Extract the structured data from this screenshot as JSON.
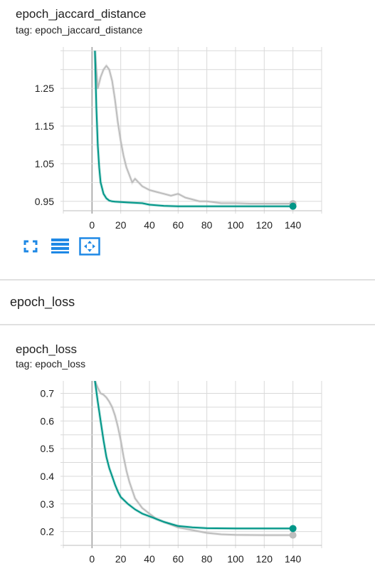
{
  "colors": {
    "accent": "#009688",
    "gray_run": "#bdbdbd",
    "icon_blue": "#1e88e5",
    "grid": "#d9d9d9"
  },
  "card1": {
    "title": "epoch_jaccard_distance",
    "tag": "tag: epoch_jaccard_distance",
    "toolbar": [
      {
        "name": "fullscreen-icon"
      },
      {
        "name": "toggle-log-scale-icon"
      },
      {
        "name": "fit-domain-icon"
      }
    ]
  },
  "section": {
    "title": "epoch_loss"
  },
  "card2": {
    "title": "epoch_loss",
    "tag": "tag: epoch_loss"
  },
  "chart_data": [
    {
      "type": "line",
      "title": "epoch_jaccard_distance",
      "xlabel": "",
      "ylabel": "",
      "xlim": [
        -20,
        160
      ],
      "ylim": [
        0.925,
        1.36
      ],
      "x_ticks": [
        0,
        20,
        40,
        60,
        80,
        100,
        120,
        140
      ],
      "y_ticks": [
        0.95,
        1.05,
        1.15,
        1.25
      ],
      "y_tick_labels": [
        "0.95",
        "1.05",
        "1.15",
        "1.25"
      ],
      "series": [
        {
          "name": "run_gray",
          "color": "#bdbdbd",
          "x": [
            2,
            4,
            6,
            8,
            10,
            12,
            14,
            16,
            18,
            20,
            22,
            24,
            26,
            28,
            30,
            35,
            40,
            45,
            50,
            55,
            60,
            65,
            70,
            75,
            80,
            90,
            100,
            110,
            120,
            130,
            140
          ],
          "y": [
            1.35,
            1.25,
            1.28,
            1.3,
            1.31,
            1.3,
            1.27,
            1.22,
            1.16,
            1.11,
            1.07,
            1.04,
            1.02,
            1.0,
            1.01,
            0.99,
            0.98,
            0.975,
            0.97,
            0.965,
            0.97,
            0.96,
            0.955,
            0.95,
            0.95,
            0.945,
            0.945,
            0.944,
            0.944,
            0.944,
            0.944
          ]
        },
        {
          "name": "run_teal",
          "color": "#009688",
          "x": [
            2,
            3,
            4,
            5,
            6,
            8,
            10,
            12,
            14,
            16,
            20,
            25,
            30,
            35,
            40,
            50,
            60,
            80,
            100,
            120,
            140
          ],
          "y": [
            1.35,
            1.2,
            1.1,
            1.04,
            1.0,
            0.97,
            0.958,
            0.952,
            0.95,
            0.949,
            0.948,
            0.947,
            0.946,
            0.945,
            0.941,
            0.938,
            0.937,
            0.937,
            0.937,
            0.937,
            0.937
          ]
        }
      ]
    },
    {
      "type": "line",
      "title": "epoch_loss",
      "xlabel": "",
      "ylabel": "",
      "xlim": [
        -20,
        160
      ],
      "ylim": [
        0.15,
        0.745
      ],
      "x_ticks": [
        0,
        20,
        40,
        60,
        80,
        100,
        120,
        140
      ],
      "y_ticks": [
        0.2,
        0.3,
        0.4,
        0.5,
        0.6,
        0.7
      ],
      "y_tick_labels": [
        "0.2",
        "0.3",
        "0.4",
        "0.5",
        "0.6",
        "0.7"
      ],
      "series": [
        {
          "name": "run_gray",
          "color": "#bdbdbd",
          "x": [
            2,
            4,
            6,
            8,
            10,
            12,
            14,
            16,
            18,
            20,
            22,
            24,
            26,
            28,
            30,
            35,
            40,
            45,
            50,
            55,
            60,
            70,
            80,
            90,
            100,
            120,
            140
          ],
          "y": [
            0.745,
            0.72,
            0.7,
            0.695,
            0.685,
            0.67,
            0.65,
            0.62,
            0.58,
            0.53,
            0.47,
            0.42,
            0.38,
            0.35,
            0.32,
            0.285,
            0.265,
            0.245,
            0.235,
            0.225,
            0.215,
            0.205,
            0.195,
            0.19,
            0.188,
            0.187,
            0.187
          ]
        },
        {
          "name": "run_teal",
          "color": "#009688",
          "x": [
            2,
            4,
            6,
            8,
            10,
            12,
            14,
            16,
            18,
            20,
            25,
            30,
            35,
            40,
            50,
            60,
            70,
            80,
            100,
            120,
            140
          ],
          "y": [
            0.745,
            0.67,
            0.6,
            0.53,
            0.47,
            0.43,
            0.4,
            0.37,
            0.345,
            0.325,
            0.3,
            0.28,
            0.265,
            0.255,
            0.235,
            0.22,
            0.215,
            0.212,
            0.211,
            0.211,
            0.211
          ]
        }
      ]
    }
  ]
}
